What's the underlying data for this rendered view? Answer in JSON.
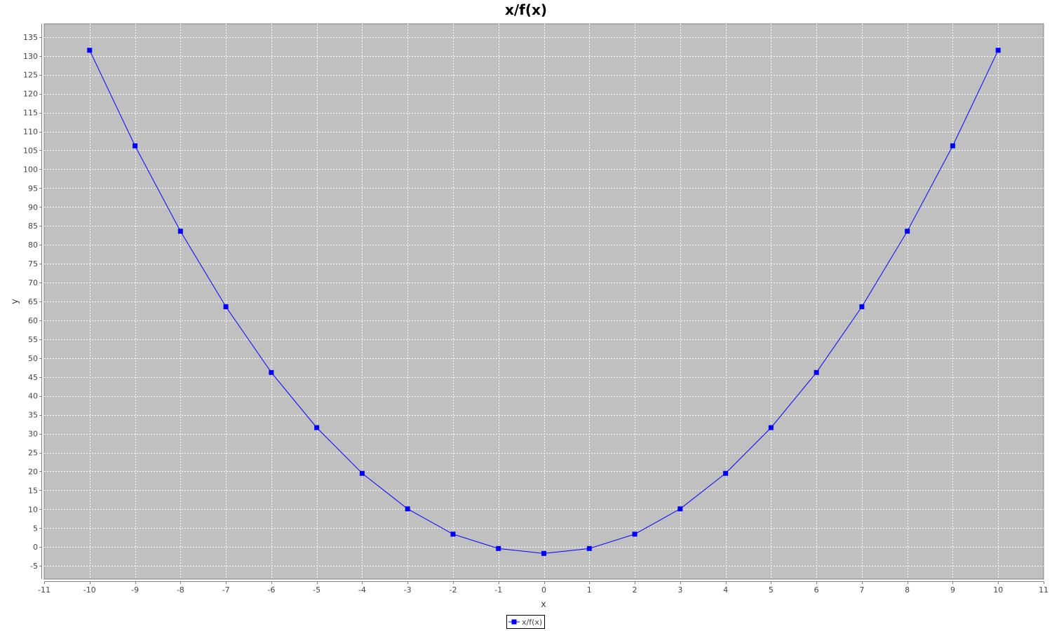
{
  "chart_data": {
    "type": "line",
    "title": "x/f(x)",
    "xlabel": "x",
    "ylabel": "y",
    "xlim": [
      -11,
      11
    ],
    "ylim": [
      -8.5,
      138.5
    ],
    "x_ticks": [
      -11,
      -10,
      -9,
      -8,
      -7,
      -6,
      -5,
      -4,
      -3,
      -2,
      -1,
      0,
      1,
      2,
      3,
      4,
      5,
      6,
      7,
      8,
      9,
      10,
      11
    ],
    "y_ticks": [
      -5,
      0,
      5,
      10,
      15,
      20,
      25,
      30,
      35,
      40,
      45,
      50,
      55,
      60,
      65,
      70,
      75,
      80,
      85,
      90,
      95,
      100,
      105,
      110,
      115,
      120,
      125,
      130,
      135
    ],
    "grid": true,
    "legend_position": "bottom-center",
    "colors": {
      "plot_background": "#c0c0c0",
      "series": "#0000ff",
      "grid": "#ffffff"
    },
    "series": [
      {
        "name": "x/f(x)",
        "x": [
          -10,
          -9,
          -8,
          -7,
          -6,
          -5,
          -4,
          -3,
          -2,
          -1,
          0,
          1,
          2,
          3,
          4,
          5,
          6,
          7,
          8,
          9,
          10
        ],
        "y": [
          131.5,
          106.2,
          83.6,
          63.6,
          46.2,
          31.6,
          19.5,
          10.1,
          3.4,
          -0.4,
          -1.7,
          -0.4,
          3.4,
          10.1,
          19.5,
          31.6,
          46.2,
          63.6,
          83.6,
          106.2,
          131.5
        ]
      }
    ]
  }
}
